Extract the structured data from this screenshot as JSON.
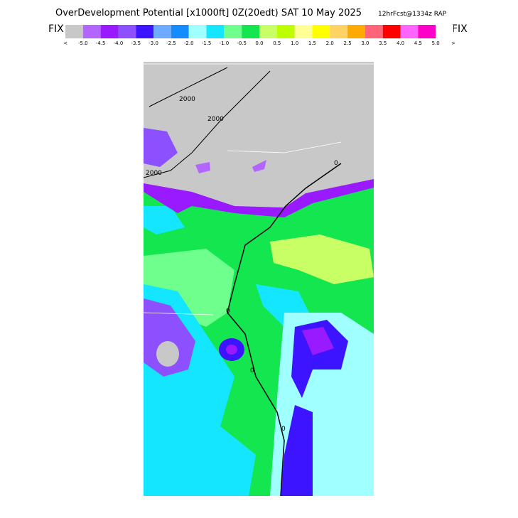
{
  "header": {
    "title": "OverDevelopment Potential  [x1000ft]  0Z(20edt) SAT 10 May 2025",
    "run": "12hrFcst@1334z RAP"
  },
  "legend": {
    "left": "FIX",
    "right": "FIX",
    "colors": [
      "#c8c8c8",
      "#b266ff",
      "#9a1aff",
      "#8c50ff",
      "#3c14ff",
      "#6eaaff",
      "#148cff",
      "#a0ffff",
      "#14e6ff",
      "#6eff8c",
      "#14e650",
      "#c8ff64",
      "#beff00",
      "#ffff96",
      "#ffff00",
      "#ffd264",
      "#ffaa00",
      "#ff6478",
      "#ff0000",
      "#ff64ff",
      "#ff00c8",
      "#ffffff"
    ],
    "labels": [
      "<",
      "-5.0",
      "-4.5",
      "-4.0",
      "-3.5",
      "-3.0",
      "-2.5",
      "-2.0",
      "-1.5",
      "-1.0",
      "-0.5",
      "0.0",
      "0.5",
      "1.0",
      "1.5",
      "2.0",
      "2.5",
      "3.0",
      "3.5",
      "4.0",
      "4.5",
      "5.0",
      ">"
    ]
  },
  "map": {
    "contour_labels": [
      "2000",
      "2000",
      "2000",
      "0",
      "0",
      "0",
      "0"
    ]
  }
}
